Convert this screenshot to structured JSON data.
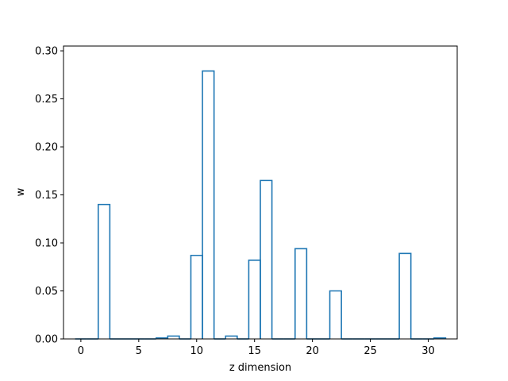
{
  "chart_data": {
    "type": "bar",
    "style": "step-histogram",
    "title": "",
    "xlabel": "z dimension",
    "ylabel": "w",
    "xlim": [
      -1.5,
      32.5
    ],
    "ylim": [
      0,
      0.305
    ],
    "xticks": [
      0,
      5,
      10,
      15,
      20,
      25,
      30
    ],
    "yticks": [
      0.0,
      0.05,
      0.1,
      0.15,
      0.2,
      0.25,
      0.3
    ],
    "xtick_labels": [
      "0",
      "5",
      "10",
      "15",
      "20",
      "25",
      "30"
    ],
    "ytick_labels": [
      "0.00",
      "0.05",
      "0.10",
      "0.15",
      "0.20",
      "0.25",
      "0.30"
    ],
    "x": [
      0,
      1,
      2,
      3,
      4,
      5,
      6,
      7,
      8,
      9,
      10,
      11,
      12,
      13,
      14,
      15,
      16,
      17,
      18,
      19,
      20,
      21,
      22,
      23,
      24,
      25,
      26,
      27,
      28,
      29,
      30,
      31
    ],
    "values": [
      0,
      0,
      0.14,
      0,
      0,
      0,
      0,
      0.001,
      0.003,
      0,
      0.087,
      0.279,
      0,
      0.003,
      0,
      0.082,
      0.165,
      0,
      0,
      0.094,
      0,
      0,
      0.05,
      0,
      0,
      0,
      0,
      0,
      0.089,
      0,
      0,
      0.001
    ],
    "grid": false,
    "color": "#1f77b4"
  }
}
